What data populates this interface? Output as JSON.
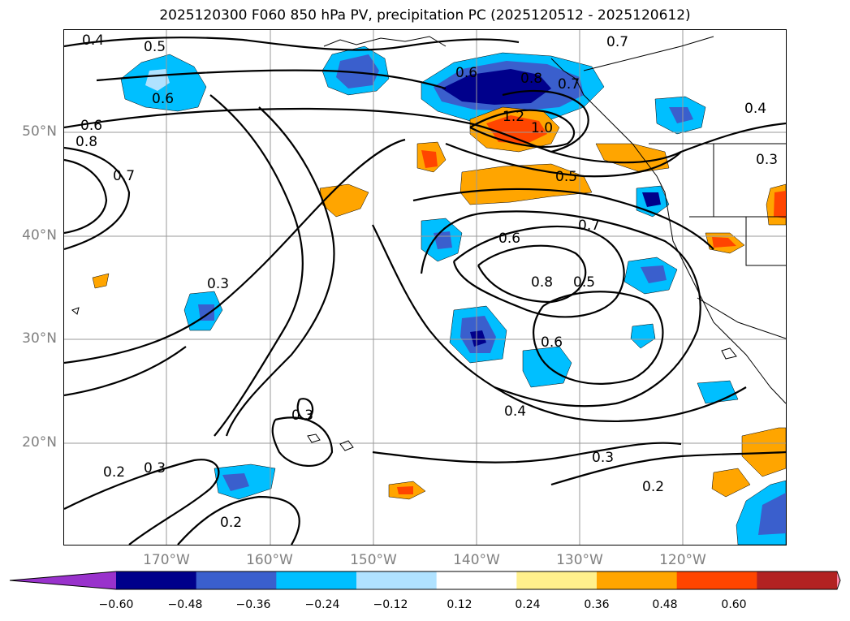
{
  "title": "2025120300 F060 850 hPa PV, precipitation PC (2025120512 - 2025120612)",
  "map": {
    "lat_labels": [
      "50°N",
      "40°N",
      "30°N",
      "20°N"
    ],
    "lon_labels": [
      "170°W",
      "160°W",
      "150°W",
      "140°W",
      "130°W",
      "120°W"
    ],
    "contour_labels": [
      "0.4",
      "0.5",
      "0.6",
      "0.6",
      "0.8",
      "0.7",
      "0.6",
      "0.8",
      "0.7",
      "0.7",
      "1.2",
      "1.0",
      "0.5",
      "0.4",
      "0.3",
      "0.7",
      "0.6",
      "0.8",
      "0.5",
      "0.3",
      "0.6",
      "0.4",
      "0.3",
      "0.3",
      "0.2",
      "0.2",
      "0.3",
      "0.2"
    ]
  },
  "colorbar": {
    "ticks": [
      "−0.60",
      "−0.48",
      "−0.36",
      "−0.24",
      "−0.12",
      "0.12",
      "0.24",
      "0.36",
      "0.48",
      "0.60"
    ],
    "colors": [
      "#9932cc",
      "#00008b",
      "#3a5fcd",
      "#00bfff",
      "#b0e2ff",
      "#ffffff",
      "#fff08c",
      "#ffa500",
      "#ff4500",
      "#b22222",
      "#ff88aa"
    ]
  }
}
